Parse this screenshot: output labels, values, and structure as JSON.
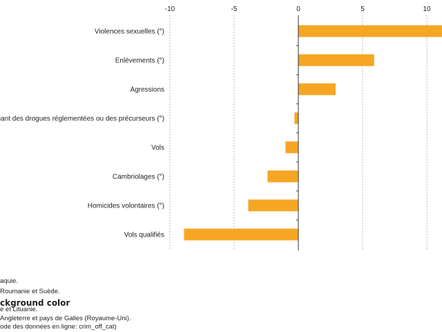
{
  "chart_data": {
    "type": "bar",
    "orientation": "horizontal",
    "categories": [
      "Violences sexuelles (°)",
      "Enlèvements (°)",
      "Agressions",
      "…uant des drogues réglementées ou des précurseurs (°)",
      "Vols",
      "Cambriolages (°)",
      "Homicides volontaires (°)",
      "Vols qualifiés"
    ],
    "values": [
      11.2,
      5.9,
      2.9,
      -0.3,
      -1.0,
      -2.4,
      -3.9,
      -8.9
    ],
    "xlim": [
      -10,
      11
    ],
    "xticks": [
      -10,
      -5,
      0,
      5,
      10
    ],
    "grid": true,
    "bar_color": "#f5a623",
    "title": "",
    "xlabel": "",
    "ylabel": ""
  },
  "footnotes": [
    "aquie.",
    "Roumanie et Suède.",
    "ckground color",
    "e et Lituanie.",
    "Angleterre et pays de Galles (Royaume-Uni).",
    "ode des données en ligne: crim_off_cat)"
  ]
}
